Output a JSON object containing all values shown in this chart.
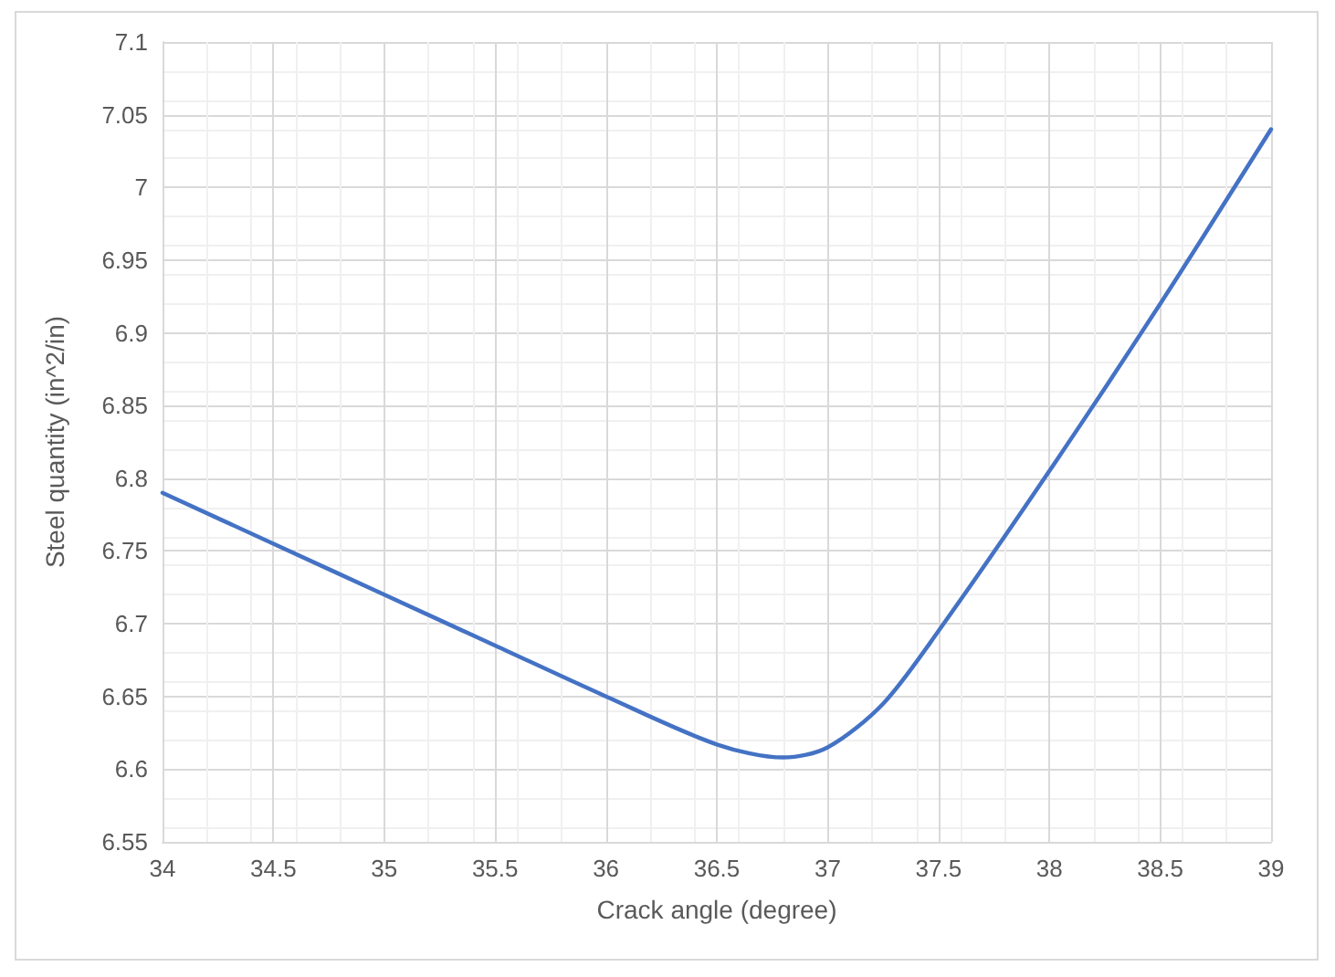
{
  "chart_data": {
    "type": "line",
    "xlabel": "Crack angle (degree)",
    "ylabel": "Steel quantity (in^2/in)",
    "x": [
      34,
      34.5,
      35,
      35.5,
      36,
      36.5,
      36.8,
      37,
      37.25,
      37.5,
      38,
      38.5,
      39
    ],
    "series": [
      {
        "color": "#4472c4",
        "values": [
          6.79,
          6.755,
          6.72,
          6.685,
          6.65,
          6.617,
          6.608,
          6.615,
          6.645,
          6.695,
          6.805,
          6.92,
          7.04
        ]
      }
    ],
    "xlim": [
      34,
      39
    ],
    "xticks": [
      34,
      34.5,
      35,
      35.5,
      36,
      36.5,
      37,
      37.5,
      38,
      38.5,
      39
    ],
    "ylim": [
      6.55,
      7.1
    ],
    "yticks": [
      6.55,
      6.6,
      6.65,
      6.7,
      6.75,
      6.8,
      6.85,
      6.9,
      6.95,
      7,
      7.05,
      7.1
    ],
    "grid": true,
    "marker": "none",
    "line_style": "solid"
  }
}
